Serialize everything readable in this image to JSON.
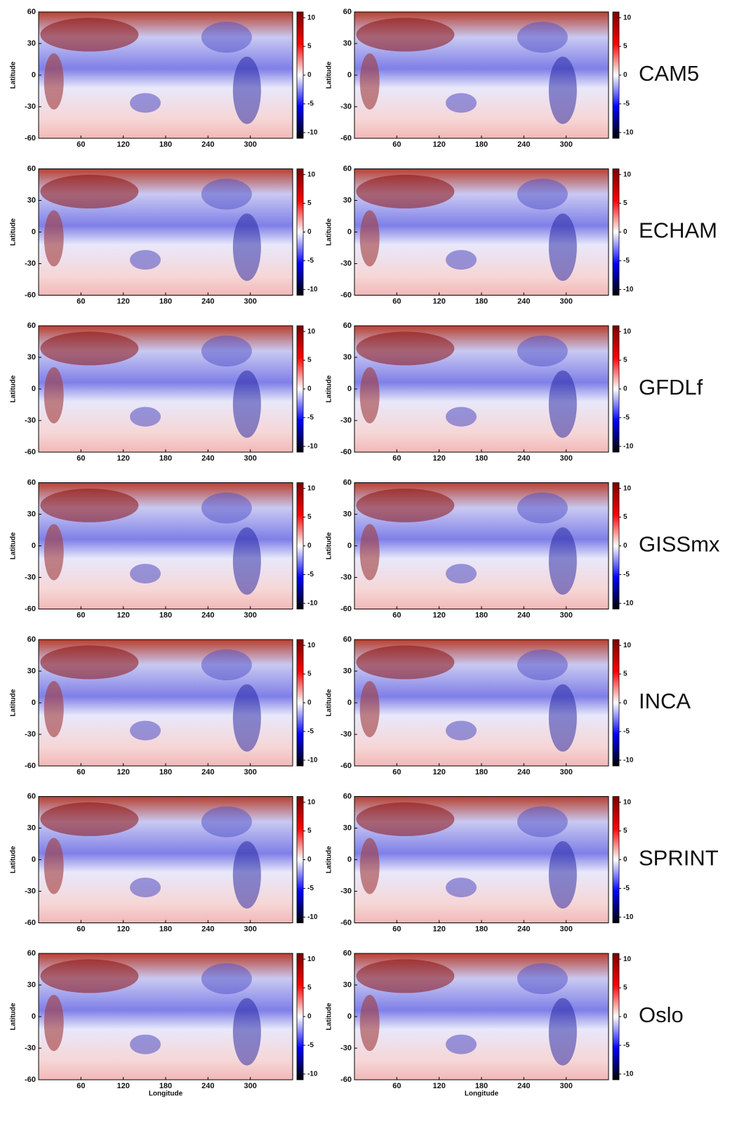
{
  "chart_data": [
    {
      "type": "heatmap",
      "ylabel": "Latitude",
      "xlim": [
        0,
        360
      ],
      "xticks": [
        60,
        120,
        180,
        240,
        300
      ],
      "ylim": [
        -60,
        60
      ],
      "yticks": [
        -60,
        -30,
        0,
        30,
        60
      ],
      "clim": [
        -11,
        11
      ],
      "cticks": [
        10,
        5,
        0,
        -5,
        -10
      ],
      "colors": [
        "#000000",
        "#0000ff",
        "#ffffff",
        "#ff0000",
        "#7a0000"
      ]
    },
    {
      "type": "heatmap",
      "label": "CAM5",
      "ylabel": "Latitude",
      "xlim": [
        0,
        360
      ],
      "xticks": [
        60,
        120,
        180,
        240,
        300
      ],
      "ylim": [
        -60,
        60
      ],
      "yticks": [
        -60,
        -30,
        0,
        30,
        60
      ],
      "clim": [
        -11,
        11
      ],
      "cticks": [
        10,
        5,
        0,
        -5,
        -10
      ],
      "colors": [
        "#000000",
        "#0000ff",
        "#ffffff",
        "#ff0000",
        "#7a0000"
      ]
    },
    {
      "type": "heatmap",
      "ylabel": "Latitude",
      "xlim": [
        0,
        360
      ],
      "xticks": [
        60,
        120,
        180,
        240,
        300
      ],
      "ylim": [
        -60,
        60
      ],
      "yticks": [
        -60,
        -30,
        0,
        30,
        60
      ],
      "clim": [
        -11,
        11
      ],
      "cticks": [
        10,
        5,
        0,
        -5,
        -10
      ],
      "colors": [
        "#000000",
        "#0000ff",
        "#ffffff",
        "#ff0000",
        "#7a0000"
      ]
    },
    {
      "type": "heatmap",
      "label": "ECHAM",
      "ylabel": "Latitude",
      "xlim": [
        0,
        360
      ],
      "xticks": [
        60,
        120,
        180,
        240,
        300
      ],
      "ylim": [
        -60,
        60
      ],
      "yticks": [
        -60,
        -30,
        0,
        30,
        60
      ],
      "clim": [
        -11,
        11
      ],
      "cticks": [
        10,
        5,
        0,
        -5,
        -10
      ],
      "colors": [
        "#000000",
        "#0000ff",
        "#ffffff",
        "#ff0000",
        "#7a0000"
      ]
    },
    {
      "type": "heatmap",
      "ylabel": "Latitude",
      "xlim": [
        0,
        360
      ],
      "xticks": [
        60,
        120,
        180,
        240,
        300
      ],
      "ylim": [
        -60,
        60
      ],
      "yticks": [
        -60,
        -30,
        0,
        30,
        60
      ],
      "clim": [
        -11,
        11
      ],
      "cticks": [
        10,
        5,
        0,
        -5,
        -10
      ],
      "colors": [
        "#000000",
        "#0000ff",
        "#ffffff",
        "#ff0000",
        "#7a0000"
      ]
    },
    {
      "type": "heatmap",
      "label": "GFDLf",
      "ylabel": "Latitude",
      "xlim": [
        0,
        360
      ],
      "xticks": [
        60,
        120,
        180,
        240,
        300
      ],
      "ylim": [
        -60,
        60
      ],
      "yticks": [
        -60,
        -30,
        0,
        30,
        60
      ],
      "clim": [
        -11,
        11
      ],
      "cticks": [
        10,
        5,
        0,
        -5,
        -10
      ],
      "colors": [
        "#000000",
        "#0000ff",
        "#ffffff",
        "#ff0000",
        "#7a0000"
      ]
    },
    {
      "type": "heatmap",
      "ylabel": "Latitude",
      "xlim": [
        0,
        360
      ],
      "xticks": [
        60,
        120,
        180,
        240,
        300
      ],
      "ylim": [
        -60,
        60
      ],
      "yticks": [
        -60,
        -30,
        0,
        30,
        60
      ],
      "clim": [
        -11,
        11
      ],
      "cticks": [
        10,
        5,
        0,
        -5,
        -10
      ],
      "colors": [
        "#000000",
        "#0000ff",
        "#ffffff",
        "#ff0000",
        "#7a0000"
      ]
    },
    {
      "type": "heatmap",
      "label": "GISSmx",
      "ylabel": "Latitude",
      "xlim": [
        0,
        360
      ],
      "xticks": [
        60,
        120,
        180,
        240,
        300
      ],
      "ylim": [
        -60,
        60
      ],
      "yticks": [
        -60,
        -30,
        0,
        30,
        60
      ],
      "clim": [
        -11,
        11
      ],
      "cticks": [
        10,
        5,
        0,
        -5,
        -10
      ],
      "colors": [
        "#000000",
        "#0000ff",
        "#ffffff",
        "#ff0000",
        "#7a0000"
      ]
    },
    {
      "type": "heatmap",
      "ylabel": "Latitude",
      "xlim": [
        0,
        360
      ],
      "xticks": [
        60,
        120,
        180,
        240,
        300
      ],
      "ylim": [
        -60,
        60
      ],
      "yticks": [
        -60,
        -30,
        0,
        30,
        60
      ],
      "clim": [
        -11,
        11
      ],
      "cticks": [
        10,
        5,
        0,
        -5,
        -10
      ],
      "colors": [
        "#000000",
        "#0000ff",
        "#ffffff",
        "#ff0000",
        "#7a0000"
      ]
    },
    {
      "type": "heatmap",
      "label": "INCA",
      "ylabel": "Latitude",
      "xlim": [
        0,
        360
      ],
      "xticks": [
        60,
        120,
        180,
        240,
        300
      ],
      "ylim": [
        -60,
        60
      ],
      "yticks": [
        -60,
        -30,
        0,
        30,
        60
      ],
      "clim": [
        -11,
        11
      ],
      "cticks": [
        10,
        5,
        0,
        -5,
        -10
      ],
      "colors": [
        "#000000",
        "#0000ff",
        "#ffffff",
        "#ff0000",
        "#7a0000"
      ]
    },
    {
      "type": "heatmap",
      "ylabel": "Latitude",
      "xlim": [
        0,
        360
      ],
      "xticks": [
        60,
        120,
        180,
        240,
        300
      ],
      "ylim": [
        -60,
        60
      ],
      "yticks": [
        -60,
        -30,
        0,
        30,
        60
      ],
      "clim": [
        -11,
        11
      ],
      "cticks": [
        10,
        5,
        0,
        -5,
        -10
      ],
      "colors": [
        "#000000",
        "#0000ff",
        "#ffffff",
        "#ff0000",
        "#7a0000"
      ]
    },
    {
      "type": "heatmap",
      "label": "SPRINT",
      "ylabel": "Latitude",
      "xlim": [
        0,
        360
      ],
      "xticks": [
        60,
        120,
        180,
        240,
        300
      ],
      "ylim": [
        -60,
        60
      ],
      "yticks": [
        -60,
        -30,
        0,
        30,
        60
      ],
      "clim": [
        -11,
        11
      ],
      "cticks": [
        10,
        5,
        0,
        -5,
        -10
      ],
      "colors": [
        "#000000",
        "#0000ff",
        "#ffffff",
        "#ff0000",
        "#7a0000"
      ]
    },
    {
      "type": "heatmap",
      "ylabel": "Latitude",
      "xlabel": "Longitude",
      "xlim": [
        0,
        360
      ],
      "xticks": [
        60,
        120,
        180,
        240,
        300
      ],
      "ylim": [
        -60,
        60
      ],
      "yticks": [
        -60,
        -30,
        0,
        30,
        60
      ],
      "clim": [
        -11,
        11
      ],
      "cticks": [
        10,
        5,
        0,
        -5,
        -10
      ],
      "colors": [
        "#000000",
        "#0000ff",
        "#ffffff",
        "#ff0000",
        "#7a0000"
      ]
    },
    {
      "type": "heatmap",
      "label": "Oslo",
      "ylabel": "Latitude",
      "xlabel": "Longitude",
      "xlim": [
        0,
        360
      ],
      "xticks": [
        60,
        120,
        180,
        240,
        300
      ],
      "ylim": [
        -60,
        60
      ],
      "yticks": [
        -60,
        -30,
        0,
        30,
        60
      ],
      "clim": [
        -11,
        11
      ],
      "cticks": [
        10,
        5,
        0,
        -5,
        -10
      ],
      "colors": [
        "#000000",
        "#0000ff",
        "#ffffff",
        "#ff0000",
        "#7a0000"
      ]
    }
  ]
}
